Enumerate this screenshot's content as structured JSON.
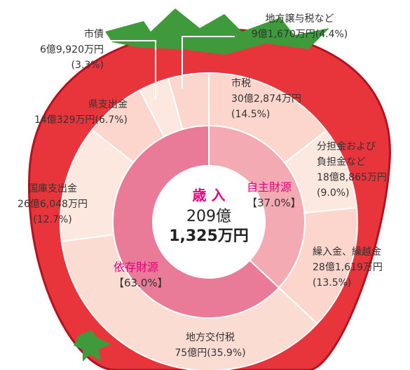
{
  "chart_data": {
    "type": "donut",
    "center_title": "歳 入",
    "center_total": [
      "209億",
      "1,325万円"
    ],
    "rings": [
      {
        "categories": [
          "市税",
          "分担金および負担金など",
          "繰入金、繰越金",
          "地方交付税",
          "国庫支出金",
          "県支出金",
          "市債",
          "地方譲与税など"
        ],
        "values": [
          14.5,
          9.0,
          13.5,
          35.9,
          12.7,
          6.7,
          3.3,
          4.4
        ],
        "value_labels": [
          "(14.5%)",
          "(9.0%)",
          "(13.5%)",
          "(35.9%)",
          "(12.7%)",
          "(6.7%)",
          "(3.3%)",
          "(4.4%)"
        ],
        "amount_labels": [
          "30億2,874万円",
          "18億8,865万円",
          "28億1,619万円",
          "75億円",
          "26億6,048万円",
          "14億329万円",
          "6億9,920万円",
          "9億1,670万円"
        ],
        "colors": [
          "#fcd6cc",
          "#fde8df",
          "#fcd6cc",
          "#fbdcd2",
          "#fde8df",
          "#fcd6cc",
          "#fde8df",
          "#fcd6cc"
        ]
      },
      {
        "categories": [
          "自主財源",
          "依存財源"
        ],
        "values": [
          37.0,
          63.0
        ],
        "value_labels": [
          "【37.0%】",
          "【63.0%】"
        ],
        "colors": [
          "#f4aab2",
          "#e97a98"
        ]
      }
    ]
  }
}
